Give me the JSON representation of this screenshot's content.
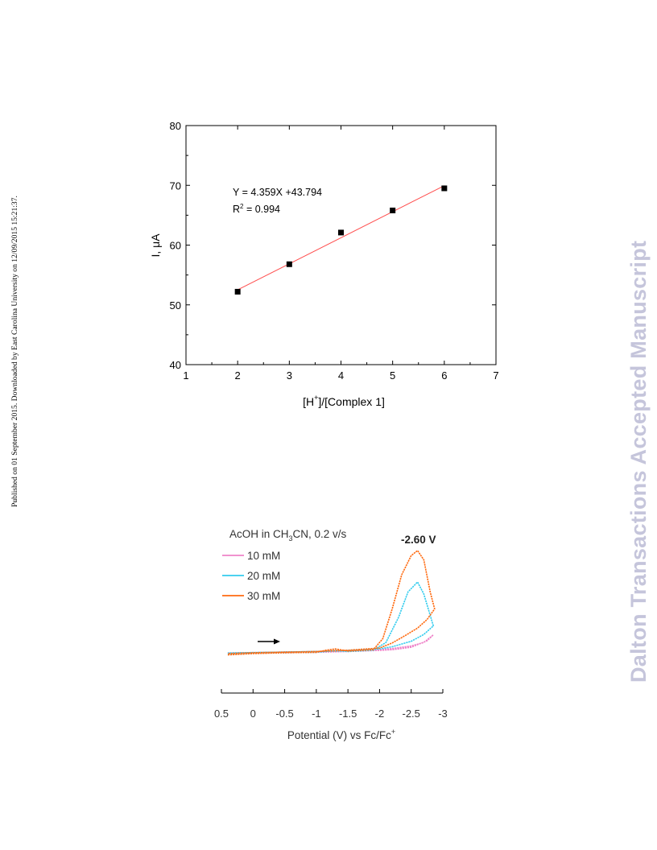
{
  "side_note": "Published on 01 September 2015. Downloaded by East Carolina University on 12/09/2015 15:21:37.",
  "watermark": "Dalton Transactions Accepted Manuscript",
  "chart_data": [
    {
      "type": "scatter",
      "title": "",
      "xlabel": {
        "main": "[H",
        "sup": "+",
        "rest": "]/[Complex 1]"
      },
      "ylabel": "I, μA",
      "xlim": [
        1,
        7
      ],
      "ylim": [
        40,
        80
      ],
      "xticks": [
        1,
        2,
        3,
        4,
        5,
        6,
        7
      ],
      "yticks": [
        40,
        50,
        60,
        70,
        80
      ],
      "grid": false,
      "points": [
        {
          "x": 2,
          "y": 52.2
        },
        {
          "x": 3,
          "y": 56.8
        },
        {
          "x": 4,
          "y": 62.1
        },
        {
          "x": 5,
          "y": 65.8
        },
        {
          "x": 6,
          "y": 69.5
        }
      ],
      "fit": {
        "slope": 4.359,
        "intercept": 43.794,
        "x_range": [
          2,
          6
        ],
        "color": "#ff4d4d"
      },
      "annotations": {
        "equation": "Y = 4.359X +43.794",
        "r2_prefix": "R",
        "r2_sup": "2",
        "r2_value": " = 0.994"
      },
      "marker_color": "#000000"
    },
    {
      "type": "line",
      "title": "",
      "legend_title": {
        "pre": "AcOH in CH",
        "sub": "3",
        "post": "CN, 0.2 v/s"
      },
      "xlabel": {
        "main": "Potential (V) vs Fc/Fc",
        "sup": "+"
      },
      "ylabel": "",
      "xlim": [
        0.5,
        -3
      ],
      "xticks": [
        "0.5",
        "0",
        "-0.5",
        "-1",
        "-1.5",
        "-2",
        "-2.5",
        "-3"
      ],
      "xtick_values": [
        0.5,
        0,
        -0.5,
        -1,
        -1.5,
        -2,
        -2.5,
        -3
      ],
      "ylim": [
        -2,
        32
      ],
      "grid": false,
      "legend_position": "top-left",
      "peak_label": "-2.60  V",
      "series": [
        {
          "name": "10 mM",
          "color": "#ee82c8",
          "forward": [
            [
              0.4,
              0
            ],
            [
              0.0,
              0.1
            ],
            [
              -0.5,
              0.2
            ],
            [
              -1.0,
              0.3
            ],
            [
              -1.5,
              0.5
            ],
            [
              -1.9,
              0.7
            ],
            [
              -2.2,
              0.9
            ],
            [
              -2.5,
              1.5
            ],
            [
              -2.75,
              3.0
            ],
            [
              -2.85,
              4.4
            ]
          ],
          "reverse": [
            [
              -2.85,
              4.4
            ],
            [
              -2.7,
              2.6
            ],
            [
              -2.5,
              1.8
            ],
            [
              -2.2,
              1.2
            ],
            [
              -2.0,
              0.9
            ],
            [
              -1.5,
              0.7
            ],
            [
              -1.0,
              0.5
            ],
            [
              -0.5,
              0.35
            ],
            [
              0.0,
              0.25
            ],
            [
              0.4,
              0.15
            ]
          ]
        },
        {
          "name": "20 mM",
          "color": "#33ccee",
          "forward": [
            [
              0.4,
              0
            ],
            [
              0.0,
              0.1
            ],
            [
              -0.5,
              0.2
            ],
            [
              -1.0,
              0.3
            ],
            [
              -1.3,
              0.7
            ],
            [
              -1.5,
              0.5
            ],
            [
              -1.9,
              0.8
            ],
            [
              -2.1,
              2.6
            ],
            [
              -2.3,
              8.5
            ],
            [
              -2.45,
              14.5
            ],
            [
              -2.6,
              16.8
            ],
            [
              -2.7,
              14.0
            ],
            [
              -2.8,
              9.0
            ],
            [
              -2.85,
              6.5
            ]
          ],
          "reverse": [
            [
              -2.85,
              6.5
            ],
            [
              -2.7,
              4.5
            ],
            [
              -2.5,
              2.9
            ],
            [
              -2.2,
              1.6
            ],
            [
              -2.0,
              1.1
            ],
            [
              -1.5,
              0.7
            ],
            [
              -1.0,
              0.5
            ],
            [
              -0.5,
              0.35
            ],
            [
              0.0,
              0.25
            ],
            [
              0.4,
              0.15
            ]
          ]
        },
        {
          "name": "30 mM",
          "color": "#ff6a10",
          "forward": [
            [
              0.4,
              -0.3
            ],
            [
              0.0,
              0.0
            ],
            [
              -0.5,
              0.2
            ],
            [
              -1.0,
              0.3
            ],
            [
              -1.15,
              0.8
            ],
            [
              -1.3,
              1.1
            ],
            [
              -1.5,
              0.6
            ],
            [
              -1.9,
              0.9
            ],
            [
              -2.05,
              3.5
            ],
            [
              -2.2,
              10.5
            ],
            [
              -2.35,
              18.5
            ],
            [
              -2.5,
              23.0
            ],
            [
              -2.6,
              24.2
            ],
            [
              -2.7,
              22.0
            ],
            [
              -2.8,
              14.5
            ],
            [
              -2.87,
              10.5
            ]
          ],
          "reverse": [
            [
              -2.87,
              10.5
            ],
            [
              -2.75,
              8.0
            ],
            [
              -2.6,
              6.0
            ],
            [
              -2.4,
              4.2
            ],
            [
              -2.2,
              2.5
            ],
            [
              -2.0,
              1.3
            ],
            [
              -1.5,
              0.8
            ],
            [
              -1.0,
              0.5
            ],
            [
              -0.5,
              0.35
            ],
            [
              0.0,
              0.2
            ],
            [
              0.4,
              0.0
            ]
          ]
        }
      ],
      "scan_direction": "arrow pointing right"
    }
  ]
}
